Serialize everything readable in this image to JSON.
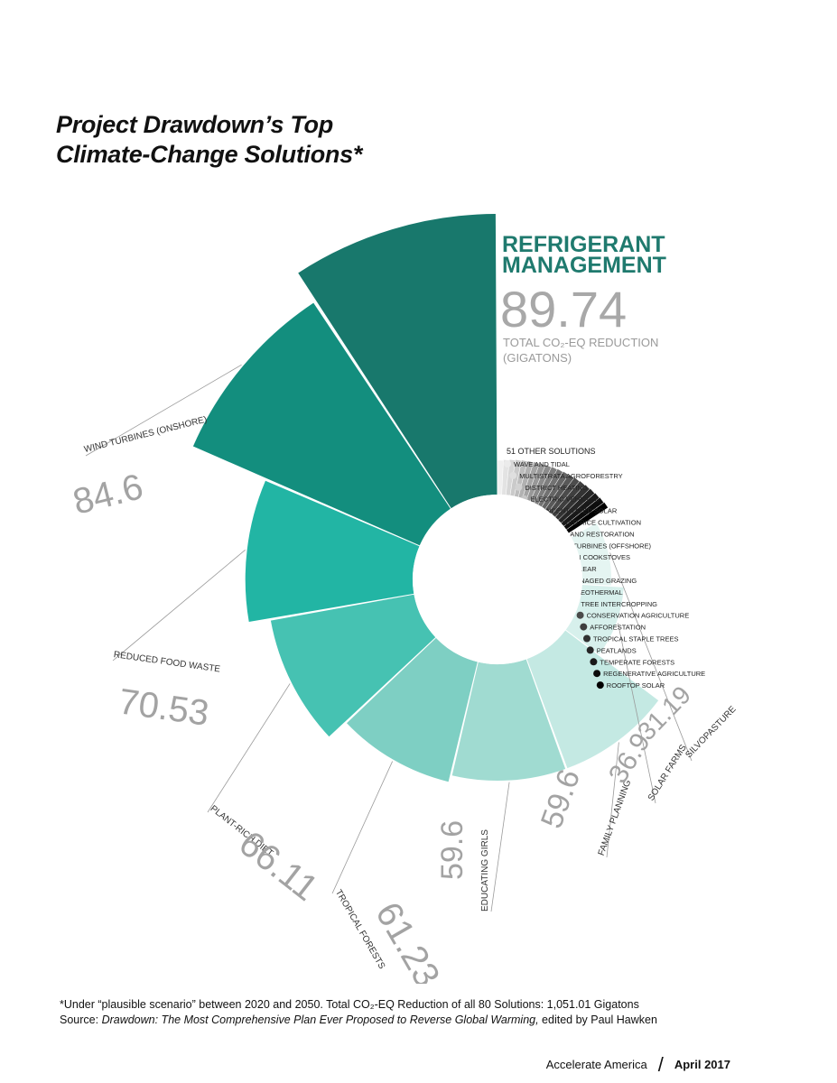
{
  "title": {
    "line1": "Project Drawdown’s Top",
    "line2": "Climate-Change Solutions*"
  },
  "chart_data": {
    "type": "polar-area",
    "title": "Project Drawdown’s Top Climate-Change Solutions*",
    "unit": "TOTAL CO₂-EQ REDUCTION (GIGATONS)",
    "highlight": {
      "name": "REFRIGERANT MANAGEMENT",
      "name_line1": "REFRIGERANT",
      "name_line2": "MANAGEMENT",
      "value": "89.74",
      "unit_line1": "TOTAL CO₂-EQ REDUCTION",
      "unit_line2": "(GIGATONS)"
    },
    "top_solutions": [
      {
        "name": "REFRIGERANT MANAGEMENT",
        "value": 89.74,
        "label": "89.74",
        "color": "#18786c"
      },
      {
        "name": "WIND TURBINES (ONSHORE)",
        "value": 84.6,
        "label": "84.6",
        "color": "#138e7e"
      },
      {
        "name": "REDUCED FOOD WASTE",
        "value": 70.53,
        "label": "70.53",
        "color": "#22b5a4"
      },
      {
        "name": "PLANT-RICH DIET",
        "value": 66.11,
        "label": "66.11",
        "color": "#46c2b2"
      },
      {
        "name": "TROPICAL FORESTS",
        "value": 61.23,
        "label": "61.23",
        "color": "#7ecfc3"
      },
      {
        "name": "EDUCATING GIRLS",
        "value": 59.6,
        "label": "59.6",
        "color": "#a0dbd1"
      },
      {
        "name": "FAMILY PLANNING",
        "value": 59.6,
        "label": "59.6",
        "color": "#c4e9e3"
      },
      {
        "name": "SOLAR FARMS",
        "value": 36.9,
        "label": "36.9",
        "color": "#d7f0ec"
      },
      {
        "name": "SILVOPASTURE",
        "value": 31.19,
        "label": "31.19",
        "color": "#e5f5f2"
      }
    ],
    "other_solutions": {
      "label": "51 OTHER SOLUTIONS",
      "items": [
        "WAVE AND TIDAL",
        "MULTISTRATA  AGROFORESTRY",
        "DISTRICT HEATING",
        "ELECTRIC VEHICLES",
        "CONCENTRATED SOLAR",
        "IMPROVED RICE CULTIVATION",
        "FARMLAND RESTORATION",
        "WIND TURBINES  (OFFSHORE)",
        "CLEAN COOKSTOVES",
        "NUCLEAR",
        "MANAGED GRAZING",
        "GEOTHERMAL",
        "TREE INTERCROPPING",
        "CONSERVATION AGRICULTURE",
        "AFFORESTATION",
        "TROPICAL STAPLE TREES",
        "PEATLANDS",
        "TEMPERATE FORESTS",
        "REGENERATIVE AGRICULTURE",
        "ROOFTOP SOLAR"
      ]
    }
  },
  "footnote": {
    "line1": "*Under “plausible scenario” between 2020 and 2050. Total CO₂-EQ Reduction of all 80 Solutions: 1,051.01 Gigatons",
    "source_prefix": "Source: ",
    "source_title": "Drawdown: The Most Comprehensive Plan Ever Proposed to Reverse Global Warming,",
    "source_suffix": " edited by Paul Hawken"
  },
  "footer": {
    "publication": "Accelerate America",
    "slash": "/",
    "date": "April 2017"
  },
  "colors": {
    "highlight_text": "#1f7a6e",
    "value_gray": "#a3a3a3",
    "leader_gray": "#9a9a9a"
  }
}
